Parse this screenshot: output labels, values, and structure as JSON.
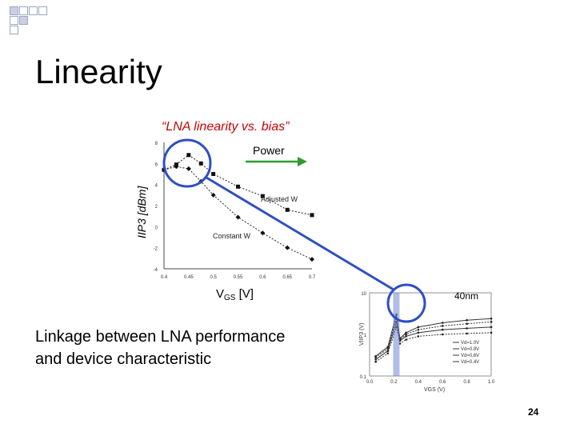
{
  "slide": {
    "title": "Linearity",
    "chart_caption": "“LNA linearity vs. bias”",
    "linkage_text_line1": "Linkage between LNA performance",
    "linkage_text_line2": "and device characteristic",
    "page_number": "24"
  },
  "colors": {
    "title_text": "#000000",
    "caption": "#cc0000",
    "highlight": "#2e4fc4",
    "power_arrow": "#2e9b2e"
  },
  "chart_data": [
    {
      "type": "line",
      "ylabel": "IIP3 [dBm]",
      "xlabel": "VGS [V]",
      "xlabel_main": "V",
      "xlabel_sub": "GS",
      "xlabel_unit": "[V]",
      "x_ticks": [
        "0.4",
        "0.45",
        "0.5",
        "0.55",
        "0.6",
        "0.65",
        "0.7"
      ],
      "y_ticks": [
        "8",
        "6",
        "4",
        "2",
        "0",
        "-2",
        "-4"
      ],
      "xlim": [
        0.4,
        0.7
      ],
      "ylim": [
        -4,
        8
      ],
      "grid": false,
      "annotations": [
        "Power",
        "Adjusted W",
        "Constant W"
      ],
      "series": [
        {
          "name": "Adjusted W",
          "x": [
            0.4,
            0.425,
            0.45,
            0.475,
            0.5,
            0.55,
            0.6,
            0.65,
            0.7
          ],
          "y": [
            5.4,
            5.9,
            6.8,
            6.0,
            5.0,
            3.8,
            2.9,
            1.6,
            1.1
          ]
        },
        {
          "name": "Constant W",
          "x": [
            0.4,
            0.425,
            0.45,
            0.475,
            0.5,
            0.55,
            0.6,
            0.65,
            0.7
          ],
          "y": [
            5.4,
            5.7,
            5.5,
            4.3,
            3.0,
            0.9,
            -0.6,
            -2.0,
            -3.1
          ]
        }
      ]
    },
    {
      "type": "line",
      "title": "40nm",
      "ylabel": "VIIP3 (V)",
      "xlabel": "VGS (V)",
      "x_ticks": [
        "0.0",
        "0.2",
        "0.4",
        "0.6",
        "0.8",
        "1.0"
      ],
      "y_ticks": [
        "10",
        "1",
        "0.1"
      ],
      "xlim": [
        0,
        1.0
      ],
      "ylim": [
        0.1,
        10
      ],
      "yscale": "log",
      "legend_position": "bottom-right",
      "series": [
        {
          "name": "Vd=1.0V",
          "x": [
            0.05,
            0.15,
            0.22,
            0.25,
            0.3,
            0.4,
            0.6,
            0.8,
            1.0
          ],
          "y": [
            0.3,
            0.5,
            3.0,
            0.8,
            1.1,
            1.5,
            1.9,
            2.2,
            2.4
          ]
        },
        {
          "name": "Vd=0.8V",
          "x": [
            0.05,
            0.15,
            0.22,
            0.25,
            0.3,
            0.4,
            0.6,
            0.8,
            1.0
          ],
          "y": [
            0.28,
            0.45,
            2.5,
            0.75,
            1.0,
            1.3,
            1.6,
            1.8,
            2.0
          ]
        },
        {
          "name": "Vd=0.6V",
          "x": [
            0.05,
            0.15,
            0.22,
            0.25,
            0.3,
            0.4,
            0.6,
            0.8,
            1.0
          ],
          "y": [
            0.25,
            0.4,
            2.0,
            0.7,
            0.9,
            1.1,
            1.3,
            1.4,
            1.5
          ]
        },
        {
          "name": "Vd=0.4V",
          "x": [
            0.05,
            0.15,
            0.22,
            0.25,
            0.3,
            0.4,
            0.6,
            0.8,
            1.0
          ],
          "y": [
            0.22,
            0.35,
            1.5,
            0.6,
            0.75,
            0.9,
            1.0,
            1.05,
            1.1
          ]
        }
      ]
    }
  ]
}
